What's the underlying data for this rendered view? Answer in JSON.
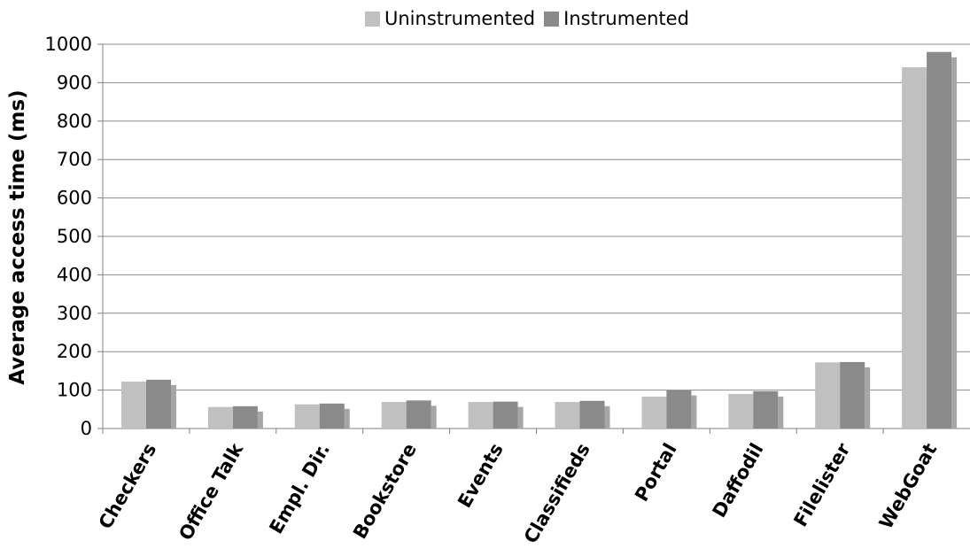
{
  "chart_data": {
    "type": "bar",
    "categories": [
      "Checkers",
      "Office Talk",
      "Empl. Dir.",
      "Bookstore",
      "Events",
      "Classifieds",
      "Portal",
      "Daffodil",
      "Filelister",
      "WebGoat"
    ],
    "series": [
      {
        "name": "Uninstrumented",
        "values": [
          122,
          56,
          63,
          69,
          69,
          69,
          83,
          90,
          172,
          940
        ],
        "color": "#c0c0c0"
      },
      {
        "name": "Instrumented",
        "values": [
          127,
          58,
          65,
          73,
          70,
          72,
          100,
          97,
          173,
          980
        ],
        "color": "#8a8a8a"
      }
    ],
    "title": "",
    "xlabel": "",
    "ylabel": "Average access time (ms)",
    "ylim": [
      0,
      1000
    ],
    "yticks": [
      0,
      100,
      200,
      300,
      400,
      500,
      600,
      700,
      800,
      900,
      1000
    ],
    "grid": true,
    "legend_position": "top"
  }
}
